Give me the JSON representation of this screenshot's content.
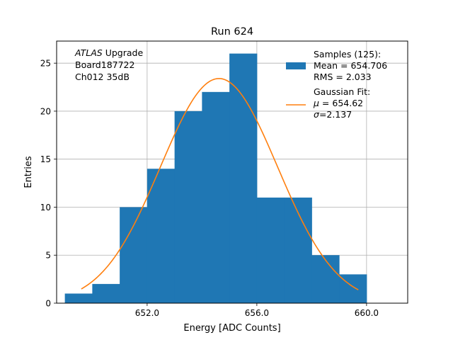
{
  "chart_data": {
    "type": "bar",
    "title": "Run 624",
    "xlabel": "Energy [ADC Counts]",
    "ylabel": "Entries",
    "xlim": [
      648.7,
      661.5
    ],
    "ylim": [
      0,
      27.3
    ],
    "xticks": [
      652.0,
      656.0,
      660.0
    ],
    "xtick_labels": [
      "652.0",
      "656.0",
      "660.0"
    ],
    "yticks": [
      0,
      5,
      10,
      15,
      20,
      25
    ],
    "ytick_labels": [
      "0",
      "5",
      "10",
      "15",
      "20",
      "25"
    ],
    "grid": true,
    "bins": [
      {
        "low": 649.0,
        "high": 650.0,
        "count": 1
      },
      {
        "low": 650.0,
        "high": 651.0,
        "count": 2
      },
      {
        "low": 651.0,
        "high": 652.0,
        "count": 10
      },
      {
        "low": 652.0,
        "high": 653.0,
        "count": 14
      },
      {
        "low": 653.0,
        "high": 654.0,
        "count": 20
      },
      {
        "low": 654.0,
        "high": 655.0,
        "count": 22
      },
      {
        "low": 655.0,
        "high": 656.0,
        "count": 26
      },
      {
        "low": 656.0,
        "high": 657.0,
        "count": 11
      },
      {
        "low": 657.0,
        "high": 658.0,
        "count": 11
      },
      {
        "low": 658.0,
        "high": 659.0,
        "count": 5
      },
      {
        "low": 659.0,
        "high": 660.0,
        "count": 3
      },
      {
        "low": 660.0,
        "high": 661.0,
        "count": 0
      }
    ],
    "fit": {
      "type": "gaussian",
      "amplitude": 23.4,
      "mu": 654.62,
      "sigma": 2.137,
      "x_start": 649.6,
      "x_end": 659.7,
      "color": "#ff7f0e"
    },
    "bar_color": "#1f77b4",
    "annotation_lines": [
      {
        "italic": "ATLAS",
        "text": " Upgrade"
      },
      {
        "italic": "",
        "text": " Board187722"
      },
      {
        "italic": "",
        "text": " Ch012 35dB"
      }
    ],
    "legend": {
      "position": "top-right",
      "samples_lines": [
        "Samples (125):",
        " Mean = 654.706",
        " RMS = 2.033"
      ],
      "fit_lines": [
        {
          "prefix": "Gaussian Fit:",
          "symbol": "",
          "suffix": ""
        },
        {
          "prefix": " ",
          "symbol": "μ",
          "suffix": " = 654.62"
        },
        {
          "prefix": "",
          "symbol": "σ",
          "suffix": "=2.137"
        }
      ]
    }
  }
}
